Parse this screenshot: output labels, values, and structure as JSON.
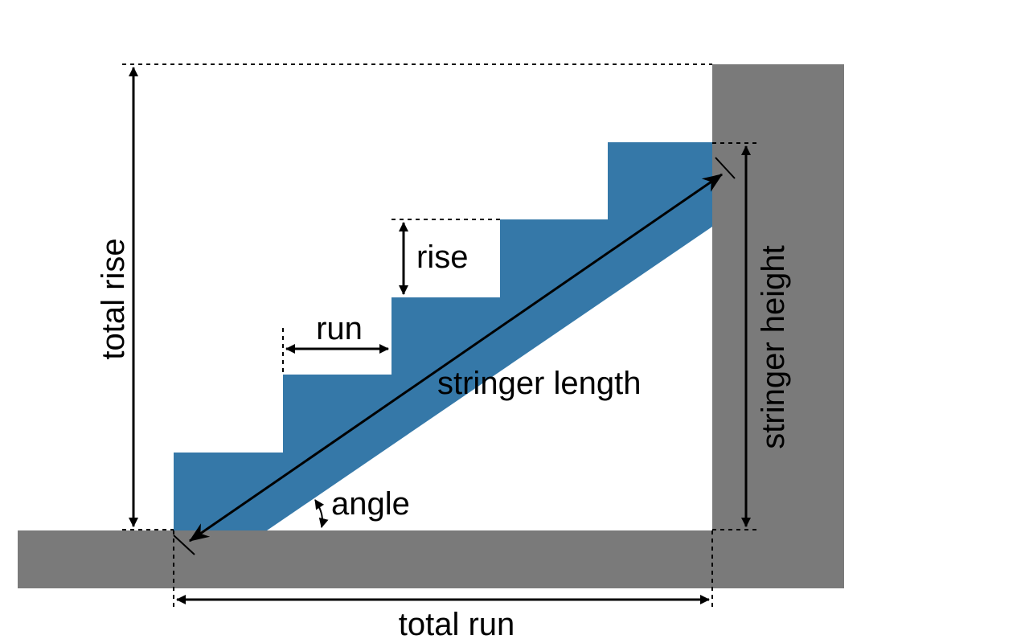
{
  "labels": {
    "total_rise": "total rise",
    "rise": "rise",
    "run": "run",
    "stringer_length": "stringer length",
    "angle": "angle",
    "stringer_height": "stringer height",
    "total_run": "total run"
  },
  "colors": {
    "stringer": "#3578A8",
    "wall": "#7A7A7A",
    "line": "#000000",
    "background": "#FFFFFF"
  },
  "steps": 5
}
